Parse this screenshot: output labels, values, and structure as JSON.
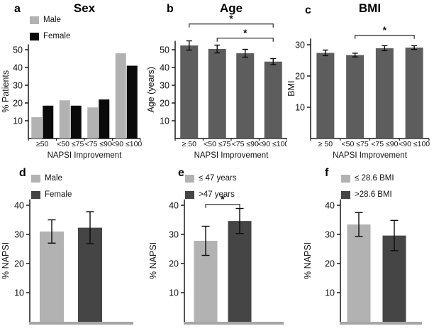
{
  "figure": {
    "background": "#ffffff"
  },
  "colors": {
    "light_gray": "#b2b2b2",
    "black": "#0a0a0a",
    "mid_gray": "#5d5d5d",
    "dark_gray": "#454545",
    "axis": "#1a1a1a",
    "text": "#111111",
    "baseline_strip": "#a6a6a6",
    "bracket": "#3a3a3a"
  },
  "chart_data": [
    {
      "id": "a",
      "panel_label": "a",
      "title": "Sex",
      "type": "bar",
      "xlabel": "NAPSI Improvement",
      "ylabel": "% Patients",
      "categories": [
        "≥50",
        "<50 ≤75",
        "<75 ≤90",
        "<90 ≤100"
      ],
      "yticks": [
        10,
        20,
        30,
        40,
        50
      ],
      "ylim": [
        0,
        53
      ],
      "series": [
        {
          "name": "Male",
          "color_key": "light_gray",
          "values": [
            12,
            21.5,
            17.5,
            48
          ]
        },
        {
          "name": "Female",
          "color_key": "black",
          "values": [
            18.5,
            18.5,
            22,
            41
          ]
        }
      ],
      "legend": {
        "position": "top-left",
        "items": [
          "Male",
          "Female"
        ]
      },
      "brackets": []
    },
    {
      "id": "b",
      "panel_label": "b",
      "title": "Age",
      "type": "bar",
      "xlabel": "NAPSI Improvement",
      "ylabel": "Age (years)",
      "categories": [
        "≥ 50",
        "<50 ≤75",
        "<75 ≤90",
        "<90 ≤100"
      ],
      "yticks": [
        10,
        20,
        30,
        40,
        50
      ],
      "ylim": [
        0,
        55
      ],
      "series": [
        {
          "name": "Age",
          "color_key": "mid_gray",
          "values": [
            52.4,
            50.4,
            48,
            43.3
          ],
          "errors": [
            2.6,
            2.2,
            2.2,
            1.7
          ]
        }
      ],
      "brackets": [
        {
          "from_bar": 0,
          "to_bar": 3,
          "y": 64.5,
          "label": "*"
        },
        {
          "from_bar": 1,
          "to_bar": 3,
          "y": 56.5,
          "label": "*"
        }
      ]
    },
    {
      "id": "c",
      "panel_label": "c",
      "title": "BMI",
      "type": "bar",
      "xlabel": "NAPSI Improvement",
      "ylabel": "BMI",
      "categories": [
        "≥ 50",
        "<50 ≤75",
        "<75 ≤90",
        "<90 ≤100"
      ],
      "yticks": [
        10,
        20,
        30
      ],
      "ylim": [
        0,
        32
      ],
      "series": [
        {
          "name": "BMI",
          "color_key": "mid_gray",
          "values": [
            27.4,
            26.7,
            28.9,
            29.1
          ],
          "errors": [
            0.9,
            0.6,
            0.8,
            0.6
          ]
        }
      ],
      "brackets": [
        {
          "from_bar": 1,
          "to_bar": 3,
          "y": 33,
          "label": "*"
        }
      ]
    },
    {
      "id": "d",
      "panel_label": "d",
      "type": "bar",
      "ylabel": "% NAPSI",
      "categories": [
        ""
      ],
      "yticks": [
        10,
        20,
        30,
        40
      ],
      "ylim": [
        0,
        42
      ],
      "series": [
        {
          "name": "Male",
          "color_key": "light_gray",
          "values": [
            31
          ],
          "errors": [
            4
          ]
        },
        {
          "name": "Female",
          "color_key": "dark_gray",
          "values": [
            32.3
          ],
          "errors": [
            5.5
          ]
        }
      ],
      "legend": {
        "position": "top-left",
        "items": [
          "Male",
          "Female"
        ]
      },
      "brackets": []
    },
    {
      "id": "e",
      "panel_label": "e",
      "type": "bar",
      "ylabel": "% NAPSI",
      "categories": [
        ""
      ],
      "yticks": [
        10,
        20,
        30,
        40
      ],
      "ylim": [
        0,
        42
      ],
      "series": [
        {
          "name": "≤ 47 years",
          "color_key": "light_gray",
          "values": [
            27.8
          ],
          "errors": [
            5
          ]
        },
        {
          "name": ">47 years",
          "color_key": "dark_gray",
          "values": [
            34.6
          ],
          "errors": [
            4.3
          ]
        }
      ],
      "legend": {
        "position": "top-left",
        "items": [
          "≤ 47 years",
          ">47 years"
        ]
      },
      "brackets": [
        {
          "from_bar": 0,
          "to_bar": 1,
          "y": 40.3,
          "label": "*"
        }
      ]
    },
    {
      "id": "f",
      "panel_label": "f",
      "type": "bar",
      "ylabel": "% NAPSI",
      "categories": [
        ""
      ],
      "yticks": [
        10,
        20,
        30,
        40
      ],
      "ylim": [
        0,
        42
      ],
      "series": [
        {
          "name": "≤ 28.6 BMI",
          "color_key": "light_gray",
          "values": [
            33.4
          ],
          "errors": [
            4.1
          ]
        },
        {
          "name": ">28.6 BMI",
          "color_key": "dark_gray",
          "values": [
            29.6
          ],
          "errors": [
            5.2
          ]
        }
      ],
      "legend": {
        "position": "top-left",
        "items": [
          "≤ 28.6 BMI",
          ">28.6 BMI"
        ]
      },
      "brackets": []
    }
  ]
}
